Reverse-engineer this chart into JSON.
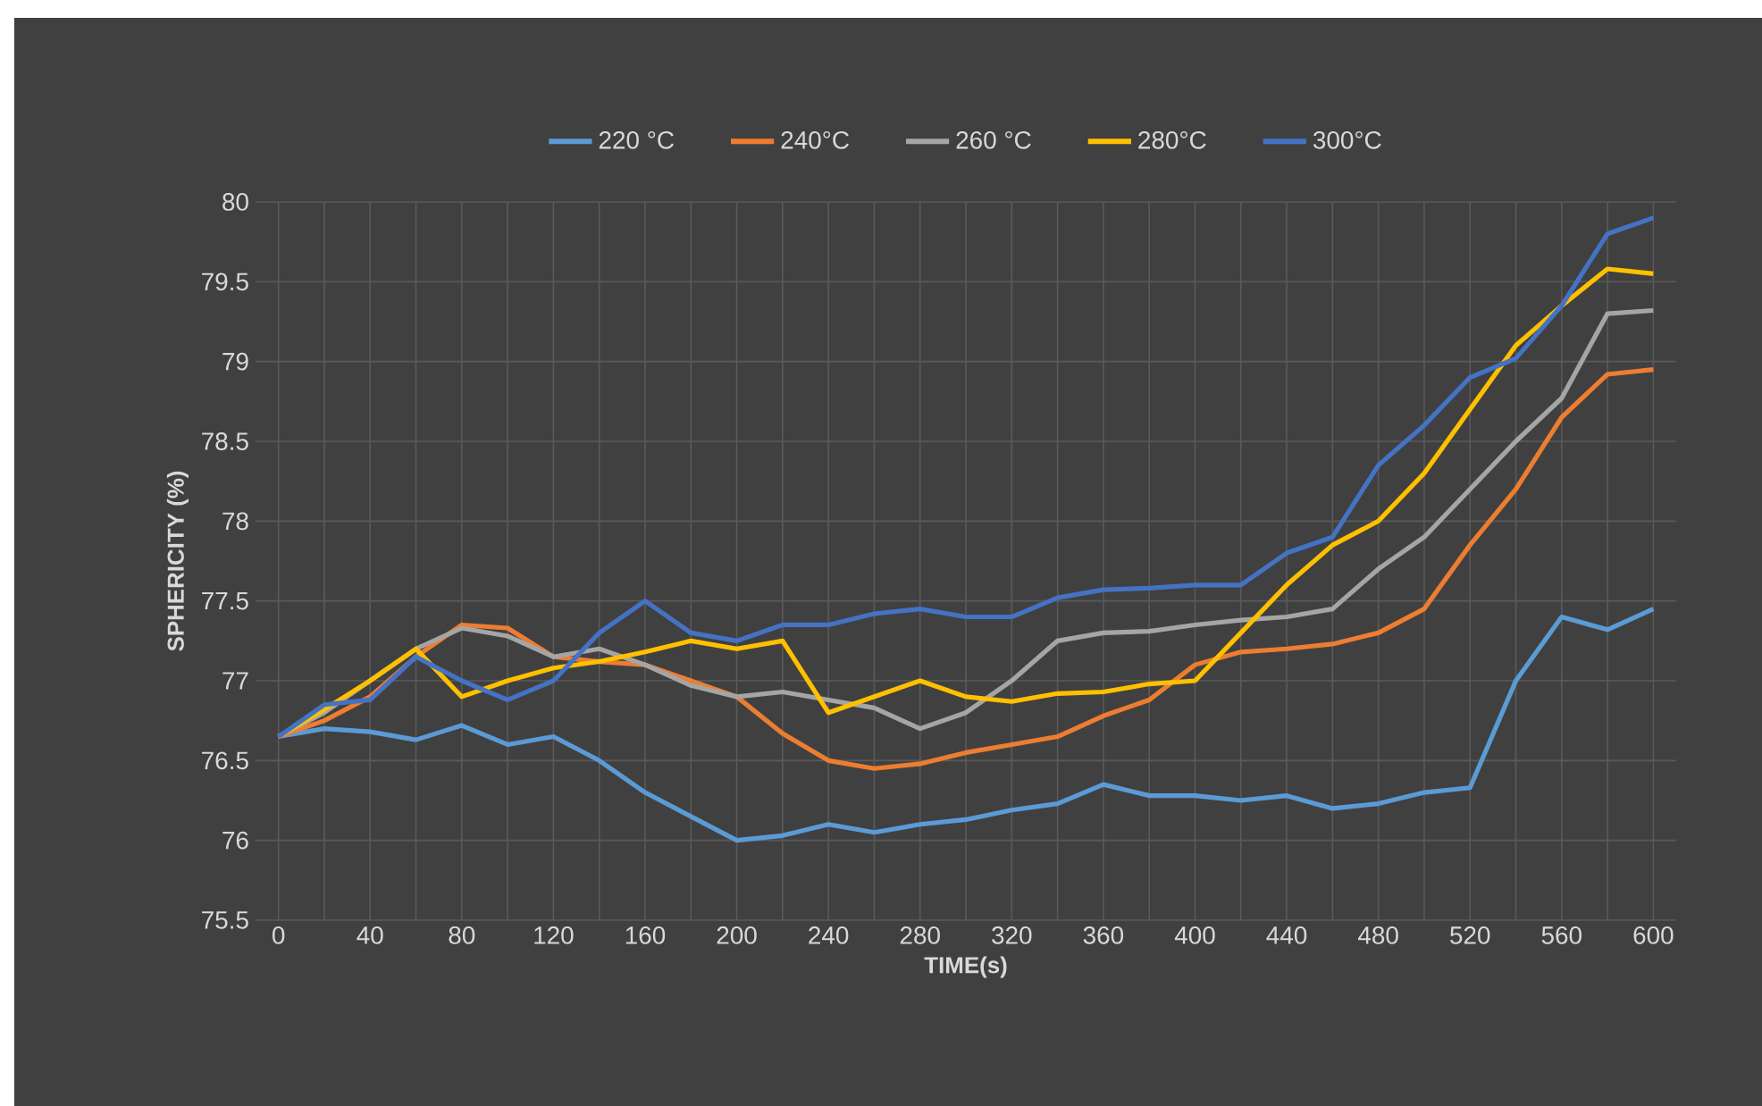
{
  "chart_data": {
    "type": "line",
    "xlabel": "TIME(s)",
    "ylabel": "SPHERICITY (%)",
    "x": [
      0,
      20,
      40,
      60,
      80,
      100,
      120,
      140,
      160,
      180,
      200,
      220,
      240,
      260,
      280,
      300,
      320,
      340,
      360,
      380,
      400,
      420,
      440,
      460,
      480,
      500,
      520,
      540,
      560,
      580,
      600
    ],
    "xlim": [
      -10,
      610
    ],
    "xticks": [
      0,
      40,
      80,
      120,
      160,
      200,
      240,
      280,
      320,
      360,
      400,
      440,
      480,
      520,
      560,
      600
    ],
    "ylim": [
      75.5,
      80
    ],
    "yticks": [
      75.5,
      76,
      76.5,
      77,
      77.5,
      78,
      78.5,
      79,
      79.5,
      80
    ],
    "grid": true,
    "legend": "top",
    "marker": "none",
    "line_style": "solid",
    "series": [
      {
        "name": "220 °C",
        "color": "#5b9bd5",
        "values": [
          76.65,
          76.7,
          76.68,
          76.63,
          76.72,
          76.6,
          76.65,
          76.5,
          76.3,
          76.15,
          76.0,
          76.03,
          76.1,
          76.05,
          76.1,
          76.13,
          76.19,
          76.23,
          76.35,
          76.28,
          76.28,
          76.25,
          76.28,
          76.2,
          76.23,
          76.3,
          76.33,
          77.0,
          77.4,
          77.32,
          77.45
        ]
      },
      {
        "name": "240°C",
        "color": "#ed7d31",
        "values": [
          76.65,
          76.75,
          76.9,
          77.15,
          77.35,
          77.33,
          77.15,
          77.12,
          77.1,
          77.0,
          76.9,
          76.67,
          76.5,
          76.45,
          76.48,
          76.55,
          76.6,
          76.65,
          76.78,
          76.88,
          77.1,
          77.18,
          77.2,
          77.23,
          77.3,
          77.45,
          77.85,
          78.2,
          78.65,
          78.92,
          78.95
        ]
      },
      {
        "name": "260 °C",
        "color": "#a5a5a5",
        "values": [
          76.65,
          76.8,
          77.0,
          77.2,
          77.33,
          77.28,
          77.15,
          77.2,
          77.1,
          76.97,
          76.9,
          76.93,
          76.88,
          76.83,
          76.7,
          76.8,
          77.0,
          77.25,
          77.3,
          77.31,
          77.35,
          77.38,
          77.4,
          77.45,
          77.7,
          77.9,
          78.2,
          78.5,
          78.77,
          79.3,
          79.32
        ]
      },
      {
        "name": "280°C",
        "color": "#ffc000",
        "values": [
          76.65,
          76.82,
          77.0,
          77.2,
          76.9,
          77.0,
          77.08,
          77.12,
          77.18,
          77.25,
          77.2,
          77.25,
          76.8,
          76.9,
          77.0,
          76.9,
          76.87,
          76.92,
          76.93,
          76.98,
          77.0,
          77.3,
          77.6,
          77.85,
          78.0,
          78.3,
          78.7,
          79.1,
          79.35,
          79.58,
          79.55
        ]
      },
      {
        "name": "300°C",
        "color": "#4472c4",
        "values": [
          76.65,
          76.85,
          76.88,
          77.15,
          77.0,
          76.88,
          77.0,
          77.3,
          77.5,
          77.3,
          77.25,
          77.35,
          77.35,
          77.42,
          77.45,
          77.4,
          77.4,
          77.52,
          77.57,
          77.58,
          77.6,
          77.6,
          77.8,
          77.9,
          78.35,
          78.6,
          78.9,
          79.02,
          79.35,
          79.8,
          79.9
        ]
      }
    ]
  }
}
